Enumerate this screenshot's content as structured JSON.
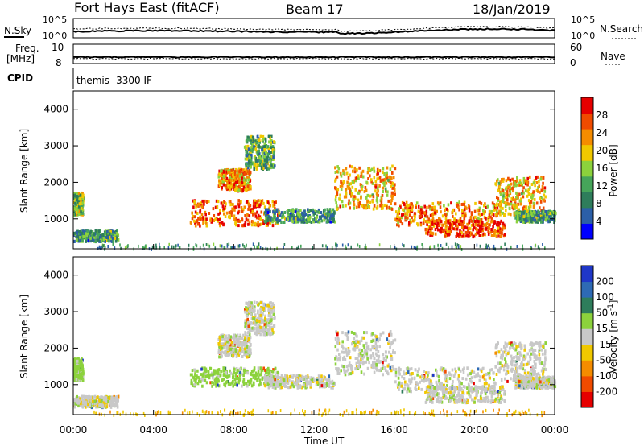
{
  "header": {
    "station": "Fort Hays East (fitACF)",
    "beam": "Beam 17",
    "date": "18/Jan/2019"
  },
  "summary": {
    "nsky_label": "N.Sky",
    "nsearch_label": "N.Search",
    "noise_ticks": [
      "10^5",
      "10^0"
    ],
    "freq_label_1": "Freq.",
    "freq_label_2": "[MHz]",
    "freq_ticks": [
      "10",
      "8"
    ],
    "nave_label": "Nave",
    "nave_ticks": [
      "60",
      "0"
    ],
    "cpid_label": "CPID",
    "cpid_text": "themis -3300 IF"
  },
  "colors": {
    "power_scale": [
      "#0000ff",
      "#2b5fa8",
      "#2e7d5b",
      "#46a55a",
      "#8cd23c",
      "#f0c800",
      "#f58c00",
      "#f04b00",
      "#e60000"
    ],
    "velocity_scale": [
      "#1f37c8",
      "#2e6ab4",
      "#2e7d5b",
      "#8cd23c",
      "#c8c8c8",
      "#f0c800",
      "#f58c00",
      "#f04b00",
      "#e60000"
    ]
  },
  "chart_data": [
    {
      "type": "heatmap",
      "title": "Power",
      "xlabel": "",
      "ylabel": "Slant Range [km]",
      "x_ticks": [
        "00:00",
        "04:00",
        "08:00",
        "12:00",
        "16:00",
        "20:00",
        "00:00"
      ],
      "y_ticks": [
        "1000",
        "2000",
        "3000",
        "4000"
      ],
      "xlim_hours": [
        0,
        24
      ],
      "ylim_km": [
        180,
        4500
      ],
      "colorbar": {
        "label": "Power [dB]",
        "ticks": [
          "4",
          "8",
          "12",
          "16",
          "20",
          "24",
          "28"
        ],
        "range": [
          0,
          30
        ]
      },
      "regions": [
        {
          "x": [
            0.0,
            0.45
          ],
          "y": [
            1150,
            1750
          ],
          "value": 14
        },
        {
          "x": [
            0.0,
            2.2
          ],
          "y": [
            420,
            720
          ],
          "value": 10
        },
        {
          "x": [
            5.8,
            10.2
          ],
          "y": [
            850,
            1550
          ],
          "value": 24
        },
        {
          "x": [
            7.2,
            8.8
          ],
          "y": [
            1800,
            2400
          ],
          "value": 22
        },
        {
          "x": [
            8.5,
            10.0
          ],
          "y": [
            2400,
            3300
          ],
          "value": 12
        },
        {
          "x": [
            13.0,
            16.0
          ],
          "y": [
            1300,
            2500
          ],
          "value": 20
        },
        {
          "x": [
            16.0,
            21.0
          ],
          "y": [
            850,
            1500
          ],
          "value": 22
        },
        {
          "x": [
            17.5,
            21.5
          ],
          "y": [
            550,
            1000
          ],
          "value": 26
        },
        {
          "x": [
            21.0,
            23.5
          ],
          "y": [
            1100,
            2200
          ],
          "value": 20
        },
        {
          "x": [
            22.0,
            24.0
          ],
          "y": [
            950,
            1250
          ],
          "value": 10
        },
        {
          "x": [
            9.5,
            13.0
          ],
          "y": [
            950,
            1300
          ],
          "value": 10
        }
      ]
    },
    {
      "type": "heatmap",
      "title": "Velocity",
      "xlabel": "Time UT",
      "ylabel": "Slant Range [km]",
      "x_ticks": [
        "00:00",
        "04:00",
        "08:00",
        "12:00",
        "16:00",
        "20:00",
        "00:00"
      ],
      "y_ticks": [
        "1000",
        "2000",
        "3000",
        "4000"
      ],
      "xlim_hours": [
        0,
        24
      ],
      "ylim_km": [
        180,
        4500
      ],
      "colorbar": {
        "label": "Velocity [m s^-1]",
        "ticks": [
          "200",
          "100",
          "50",
          "15",
          "-15",
          "-50",
          "-100",
          "-200"
        ],
        "range": [
          -250,
          250
        ]
      },
      "regions": [
        {
          "x": [
            0.0,
            0.45
          ],
          "y": [
            1150,
            1750
          ],
          "value": 30
        },
        {
          "x": [
            0.0,
            2.2
          ],
          "y": [
            420,
            720
          ],
          "value": 0
        },
        {
          "x": [
            5.8,
            10.2
          ],
          "y": [
            1000,
            1500
          ],
          "value": 30
        },
        {
          "x": [
            7.2,
            8.8
          ],
          "y": [
            1800,
            2400
          ],
          "value": 0
        },
        {
          "x": [
            8.5,
            10.0
          ],
          "y": [
            2400,
            3300
          ],
          "value": 0
        },
        {
          "x": [
            13.0,
            16.0
          ],
          "y": [
            1300,
            2500
          ],
          "value": 0
        },
        {
          "x": [
            16.0,
            21.0
          ],
          "y": [
            850,
            1500
          ],
          "value": 0
        },
        {
          "x": [
            17.5,
            21.5
          ],
          "y": [
            550,
            1000
          ],
          "value": 0
        },
        {
          "x": [
            21.0,
            23.5
          ],
          "y": [
            1100,
            2200
          ],
          "value": 0
        },
        {
          "x": [
            22.0,
            24.0
          ],
          "y": [
            950,
            1250
          ],
          "value": 0
        },
        {
          "x": [
            9.5,
            13.0
          ],
          "y": [
            950,
            1300
          ],
          "value": 0
        }
      ]
    }
  ]
}
